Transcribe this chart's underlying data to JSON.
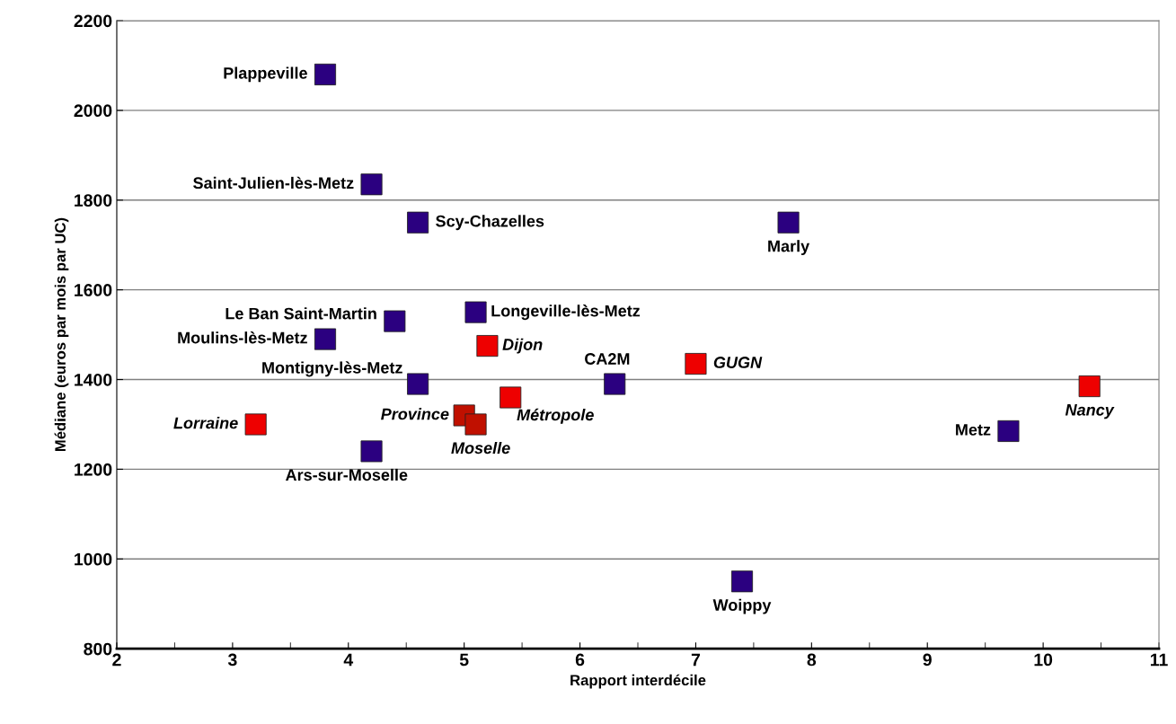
{
  "chart_data": {
    "type": "scatter",
    "xlabel": "Rapport interdécile",
    "ylabel": "Médiane (euros par mois par UC)",
    "xlim": [
      2,
      11
    ],
    "xticks": [
      2,
      3,
      4,
      5,
      6,
      7,
      8,
      9,
      10,
      11
    ],
    "ylim": [
      800,
      2200
    ],
    "yticks": [
      800,
      1000,
      1200,
      1400,
      1600,
      1800,
      2000,
      2200
    ],
    "grid": "y",
    "marker": "square",
    "series": [
      {
        "color": "#2b0080",
        "x": [
          3.8,
          4.2,
          4.6,
          7.8,
          4.4,
          5.1,
          3.8,
          4.6,
          6.3,
          4.2,
          9.7,
          7.4
        ],
        "values": [
          2080,
          1835,
          1750,
          1750,
          1530,
          1550,
          1490,
          1390,
          1390,
          1240,
          1285,
          950
        ]
      },
      {
        "colors": [
          "#ee0000",
          "#ee0000",
          "#ee0000",
          "#c01000",
          "#c01000",
          "#ee0000",
          "#ee0000"
        ],
        "x": [
          5.2,
          7.0,
          3.2,
          5.0,
          5.1,
          5.4,
          10.4
        ],
        "values": [
          1475,
          1435,
          1300,
          1320,
          1300,
          1360,
          1385
        ]
      }
    ],
    "annotations": [
      {
        "text": "Plappeville",
        "x": 3.8,
        "y": 2080
      },
      {
        "text": "Saint-Julien-lès-Metz",
        "x": 4.2,
        "y": 1835
      },
      {
        "text": "Scy-Chazelles",
        "x": 4.6,
        "y": 1750
      },
      {
        "text": "Marly",
        "x": 7.8,
        "y": 1750
      },
      {
        "text": "Le Ban Saint-Martin",
        "x": 4.4,
        "y": 1530
      },
      {
        "text": "Longeville-lès-Metz",
        "x": 5.1,
        "y": 1550
      },
      {
        "text": "Moulins-lès-Metz",
        "x": 3.8,
        "y": 1490
      },
      {
        "text": "Montigny-lès-Metz",
        "x": 4.6,
        "y": 1390
      },
      {
        "text": "CA2M",
        "x": 6.3,
        "y": 1390
      },
      {
        "text": "Ars-sur-Moselle",
        "x": 4.2,
        "y": 1240
      },
      {
        "text": "Metz",
        "x": 9.7,
        "y": 1285
      },
      {
        "text": "Woippy",
        "x": 7.4,
        "y": 950
      },
      {
        "text": "Dijon",
        "x": 5.2,
        "y": 1475
      },
      {
        "text": "GUGN",
        "x": 7.0,
        "y": 1435
      },
      {
        "text": "Lorraine",
        "x": 3.2,
        "y": 1300
      },
      {
        "text": "Province",
        "x": 5.0,
        "y": 1320
      },
      {
        "text": "Moselle",
        "x": 5.1,
        "y": 1300
      },
      {
        "text": "Métropole",
        "x": 5.4,
        "y": 1360
      },
      {
        "text": "Nancy",
        "x": 10.4,
        "y": 1385
      }
    ]
  }
}
